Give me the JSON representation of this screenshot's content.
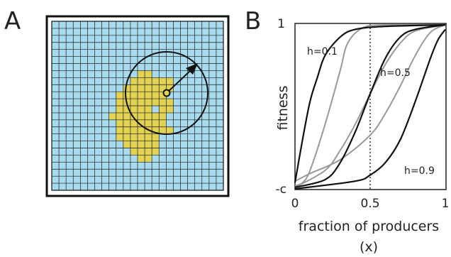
{
  "panel_a": {
    "label": "A",
    "colors": {
      "empty": "#a8dbee",
      "producer": "#e2d355",
      "grid": "#1c1c1c"
    }
  },
  "panel_b": {
    "label": "B",
    "ylabel": "fitness",
    "xlabel_line1": "fraction of producers",
    "xlabel_line2": "(x)",
    "x_ticks": [
      "0",
      "0.5",
      "1"
    ],
    "y_ticks": [
      "-c",
      "1"
    ],
    "curve_labels": [
      "h=0.1",
      "h=0.5",
      "h=0.9"
    ]
  },
  "chart_data": {
    "type": "line",
    "xlabel": "fraction of producers (x)",
    "ylabel": "fitness",
    "xlim": [
      0,
      1
    ],
    "x_ticks": [
      "0",
      "0.5",
      "1"
    ],
    "y_ticks": [
      "-c",
      "1"
    ],
    "reference_line": {
      "x": 0.5,
      "style": "dotted"
    },
    "series": [
      {
        "name": "h=0.1",
        "color": "#111111",
        "x": [
          0,
          0.05,
          0.1,
          0.15,
          0.2,
          0.3,
          0.4,
          0.6,
          1
        ],
        "y": [
          -0.03,
          0.25,
          0.5,
          0.66,
          0.8,
          0.92,
          0.97,
          0.99,
          1.0
        ]
      },
      {
        "name": "h=0.1",
        "color": "#999999",
        "x": [
          0,
          0.05,
          0.1,
          0.2,
          0.3,
          0.35,
          0.45,
          0.6,
          1
        ],
        "y": [
          -0.05,
          -0.03,
          0.05,
          0.35,
          0.7,
          0.88,
          0.98,
          1.0,
          1.0
        ]
      },
      {
        "name": "h=0.5",
        "color": "#111111",
        "x": [
          0,
          0.2,
          0.3,
          0.4,
          0.5,
          0.6,
          0.7,
          0.8,
          1
        ],
        "y": [
          -0.06,
          -0.01,
          0.1,
          0.3,
          0.55,
          0.78,
          0.92,
          0.97,
          1.0
        ]
      },
      {
        "name": "h=0.5",
        "color": "#999999",
        "x": [
          0,
          0.2,
          0.3,
          0.4,
          0.5,
          0.6,
          0.7,
          0.8,
          1
        ],
        "y": [
          -0.06,
          0.05,
          0.18,
          0.35,
          0.55,
          0.74,
          0.88,
          0.96,
          1.0
        ]
      },
      {
        "name": "h=0.9",
        "color": "#111111",
        "x": [
          0,
          0.4,
          0.5,
          0.6,
          0.7,
          0.8,
          0.9,
          0.95,
          1
        ],
        "y": [
          -0.07,
          -0.02,
          0.02,
          0.1,
          0.25,
          0.5,
          0.78,
          0.9,
          0.97
        ]
      },
      {
        "name": "h=0.9",
        "color": "#999999",
        "x": [
          0,
          0.1,
          0.3,
          0.5,
          0.6,
          0.7,
          0.8,
          0.9,
          1
        ],
        "y": [
          -0.02,
          0.03,
          0.12,
          0.28,
          0.42,
          0.6,
          0.8,
          0.95,
          1.0
        ]
      }
    ]
  }
}
